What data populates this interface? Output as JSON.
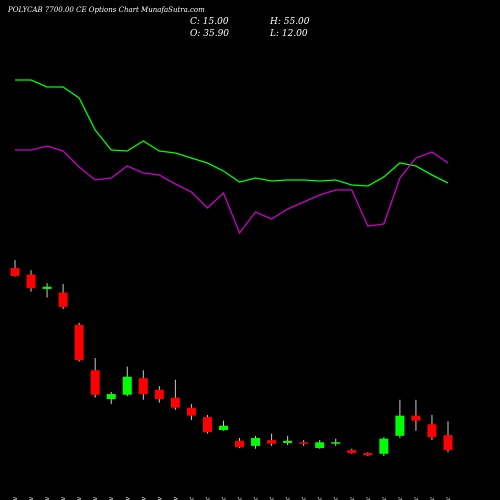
{
  "chart_data": {
    "type": "candlestick",
    "title": "POLYCAB 7700.00 CE Options Chart MunafaSutra.com",
    "summary": {
      "close": "C: 15.00",
      "high": "H: 55.00",
      "open": "O: 35.90",
      "low": "L: 12.00"
    },
    "categories": [
      "17 Nov",
      "18 Nov",
      "19 Nov",
      "20 Nov",
      "21 Nov",
      "24 Nov",
      "25 Nov",
      "26 Nov",
      "27 Nov",
      "28 Nov",
      "29 Nov",
      "02 Dec",
      "03 Dec",
      "04 Dec",
      "05 Dec",
      "06 Dec",
      "09 Dec",
      "10 Dec",
      "11 Dec",
      "12 Dec",
      "13 Dec",
      "16 Dec",
      "17 Dec",
      "18 Dec",
      "19 Dec",
      "23 Dec",
      "24 Dec",
      "26 Dec"
    ],
    "open": [
      268,
      259,
      239,
      234,
      189,
      126,
      86,
      92,
      115,
      99,
      88,
      74,
      61,
      43,
      28,
      21,
      29,
      25,
      26,
      18,
      24,
      15,
      11,
      10,
      35,
      63,
      51,
      35.9
    ],
    "close": [
      257,
      240,
      242,
      214,
      140,
      92,
      93,
      117,
      93,
      86,
      74,
      63,
      40,
      49,
      19,
      32,
      24,
      28,
      24,
      26,
      26,
      11,
      8,
      31,
      63,
      56,
      33,
      15
    ],
    "high": [
      279,
      265,
      247,
      246,
      192,
      143,
      96,
      131,
      126,
      104,
      113,
      79,
      64,
      56,
      32,
      35,
      38,
      35,
      29,
      29,
      31,
      17,
      12,
      33,
      85,
      85,
      64,
      55
    ],
    "low": [
      256,
      235,
      227,
      211,
      138,
      88,
      79,
      90,
      85,
      81,
      71,
      57,
      38,
      42,
      18,
      17,
      21,
      22,
      21,
      17,
      21,
      10,
      7,
      7,
      32,
      42,
      29,
      12
    ],
    "up_color": "#00ff00",
    "down_color": "#ff0000",
    "ylim": [
      0,
      300
    ],
    "series": [
      {
        "color": "#00ff00",
        "axis": "y2",
        "values": [
          170,
          170,
          163,
          163,
          152,
          120,
          100,
          99,
          109,
          99,
          97,
          92,
          87,
          79,
          68,
          72,
          69,
          70,
          70,
          69,
          70,
          65,
          64,
          73,
          87,
          84,
          75,
          67
        ]
      },
      {
        "color": "#cc00cc",
        "axis": "y2",
        "values": [
          100,
          100,
          104,
          99,
          83,
          70,
          72,
          84,
          77,
          75,
          66,
          58,
          42,
          57,
          17,
          38,
          31,
          41,
          48,
          55,
          60,
          60,
          24,
          26,
          72,
          92,
          98,
          87
        ]
      }
    ],
    "y2lim": [
      0,
      250
    ]
  }
}
